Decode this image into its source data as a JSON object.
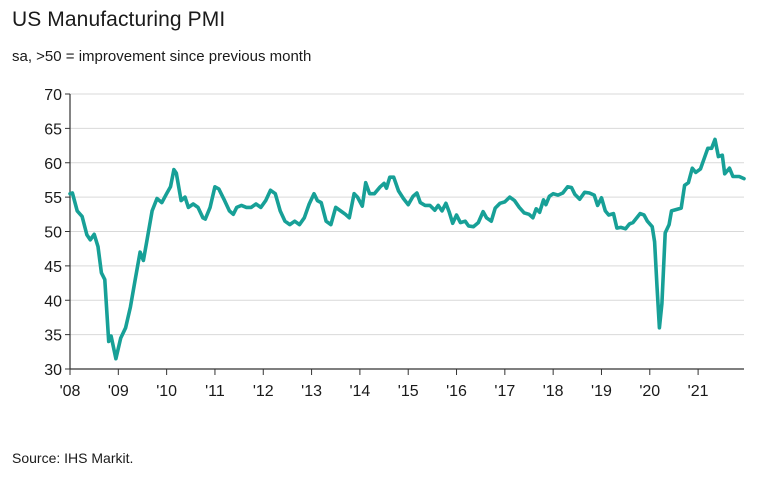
{
  "header": {
    "title": "US Manufacturing PMI",
    "subtitle": "sa, >50 = improvement since previous month"
  },
  "footer": {
    "source": "Source: IHS Markit."
  },
  "colors": {
    "line": "#17a097",
    "grid": "#d9d9d9",
    "axis": "#333333"
  },
  "chart_data": {
    "type": "line",
    "title": "US Manufacturing PMI",
    "subtitle": "sa, >50 = improvement since previous month",
    "xlabel": "",
    "ylabel": "",
    "ylim": [
      30,
      70
    ],
    "xlim": [
      2008.0,
      2021.95
    ],
    "grid": true,
    "yticks": [
      70,
      65,
      60,
      55,
      50,
      45,
      40,
      35,
      30
    ],
    "xtick_values": [
      2008,
      2009,
      2010,
      2011,
      2012,
      2013,
      2014,
      2015,
      2016,
      2017,
      2018,
      2019,
      2020,
      2021
    ],
    "xtick_labels": [
      "'08",
      "'09",
      "'10",
      "'11",
      "'12",
      "'13",
      "'14",
      "'15",
      "'16",
      "'17",
      "'18",
      "'19",
      "'20",
      "'21"
    ],
    "series": [
      {
        "name": "US Manufacturing PMI",
        "points": [
          [
            2008.0,
            55.5
          ],
          [
            2008.05,
            55.6
          ],
          [
            2008.15,
            53.0
          ],
          [
            2008.25,
            52.2
          ],
          [
            2008.35,
            49.5
          ],
          [
            2008.42,
            48.8
          ],
          [
            2008.5,
            49.6
          ],
          [
            2008.58,
            47.8
          ],
          [
            2008.65,
            44.0
          ],
          [
            2008.72,
            43.0
          ],
          [
            2008.8,
            34.0
          ],
          [
            2008.85,
            34.8
          ],
          [
            2008.95,
            31.5
          ],
          [
            2009.05,
            34.5
          ],
          [
            2009.15,
            36.0
          ],
          [
            2009.25,
            39.0
          ],
          [
            2009.35,
            43.0
          ],
          [
            2009.45,
            47.0
          ],
          [
            2009.52,
            45.8
          ],
          [
            2009.6,
            49.0
          ],
          [
            2009.7,
            53.0
          ],
          [
            2009.8,
            54.8
          ],
          [
            2009.9,
            54.2
          ],
          [
            2010.0,
            55.5
          ],
          [
            2010.08,
            56.5
          ],
          [
            2010.15,
            59.0
          ],
          [
            2010.2,
            58.5
          ],
          [
            2010.3,
            54.5
          ],
          [
            2010.38,
            55.0
          ],
          [
            2010.45,
            53.5
          ],
          [
            2010.55,
            54.0
          ],
          [
            2010.65,
            53.5
          ],
          [
            2010.75,
            52.0
          ],
          [
            2010.8,
            51.8
          ],
          [
            2010.9,
            53.5
          ],
          [
            2011.0,
            56.5
          ],
          [
            2011.08,
            56.2
          ],
          [
            2011.2,
            54.5
          ],
          [
            2011.3,
            53.0
          ],
          [
            2011.38,
            52.5
          ],
          [
            2011.45,
            53.5
          ],
          [
            2011.55,
            53.8
          ],
          [
            2011.65,
            53.5
          ],
          [
            2011.75,
            53.5
          ],
          [
            2011.85,
            54.0
          ],
          [
            2011.95,
            53.5
          ],
          [
            2012.05,
            54.5
          ],
          [
            2012.15,
            56.0
          ],
          [
            2012.25,
            55.5
          ],
          [
            2012.35,
            53.0
          ],
          [
            2012.45,
            51.5
          ],
          [
            2012.55,
            51.0
          ],
          [
            2012.65,
            51.5
          ],
          [
            2012.75,
            51.0
          ],
          [
            2012.85,
            52.0
          ],
          [
            2012.95,
            54.0
          ],
          [
            2013.05,
            55.5
          ],
          [
            2013.12,
            54.5
          ],
          [
            2013.2,
            54.2
          ],
          [
            2013.3,
            51.5
          ],
          [
            2013.4,
            51.0
          ],
          [
            2013.5,
            53.5
          ],
          [
            2013.6,
            53.0
          ],
          [
            2013.7,
            52.5
          ],
          [
            2013.78,
            52.0
          ],
          [
            2013.88,
            55.5
          ],
          [
            2013.95,
            55.0
          ],
          [
            2014.05,
            53.7
          ],
          [
            2014.12,
            57.1
          ],
          [
            2014.2,
            55.5
          ],
          [
            2014.3,
            55.5
          ],
          [
            2014.42,
            56.5
          ],
          [
            2014.5,
            57.0
          ],
          [
            2014.55,
            56.3
          ],
          [
            2014.62,
            57.9
          ],
          [
            2014.7,
            57.9
          ],
          [
            2014.8,
            55.9
          ],
          [
            2014.9,
            54.8
          ],
          [
            2015.0,
            53.9
          ],
          [
            2015.1,
            55.1
          ],
          [
            2015.18,
            55.6
          ],
          [
            2015.25,
            54.2
          ],
          [
            2015.35,
            53.8
          ],
          [
            2015.45,
            53.8
          ],
          [
            2015.55,
            53.1
          ],
          [
            2015.62,
            53.8
          ],
          [
            2015.7,
            53.0
          ],
          [
            2015.78,
            54.1
          ],
          [
            2015.85,
            52.8
          ],
          [
            2015.92,
            51.2
          ],
          [
            2016.0,
            52.4
          ],
          [
            2016.08,
            51.3
          ],
          [
            2016.18,
            51.5
          ],
          [
            2016.25,
            50.8
          ],
          [
            2016.35,
            50.7
          ],
          [
            2016.45,
            51.3
          ],
          [
            2016.55,
            52.9
          ],
          [
            2016.62,
            52.0
          ],
          [
            2016.72,
            51.5
          ],
          [
            2016.8,
            53.4
          ],
          [
            2016.9,
            54.1
          ],
          [
            2017.0,
            54.3
          ],
          [
            2017.1,
            55.0
          ],
          [
            2017.2,
            54.5
          ],
          [
            2017.3,
            53.5
          ],
          [
            2017.4,
            52.7
          ],
          [
            2017.5,
            52.5
          ],
          [
            2017.58,
            52.0
          ],
          [
            2017.65,
            53.3
          ],
          [
            2017.72,
            52.8
          ],
          [
            2017.8,
            54.6
          ],
          [
            2017.85,
            53.9
          ],
          [
            2017.92,
            55.1
          ],
          [
            2018.0,
            55.5
          ],
          [
            2018.1,
            55.3
          ],
          [
            2018.2,
            55.6
          ],
          [
            2018.3,
            56.5
          ],
          [
            2018.38,
            56.4
          ],
          [
            2018.45,
            55.4
          ],
          [
            2018.55,
            54.7
          ],
          [
            2018.65,
            55.7
          ],
          [
            2018.75,
            55.6
          ],
          [
            2018.85,
            55.3
          ],
          [
            2018.92,
            53.8
          ],
          [
            2019.0,
            54.9
          ],
          [
            2019.08,
            53.0
          ],
          [
            2019.15,
            52.4
          ],
          [
            2019.25,
            52.6
          ],
          [
            2019.32,
            50.5
          ],
          [
            2019.4,
            50.6
          ],
          [
            2019.5,
            50.4
          ],
          [
            2019.58,
            51.1
          ],
          [
            2019.65,
            51.3
          ],
          [
            2019.72,
            51.9
          ],
          [
            2019.8,
            52.6
          ],
          [
            2019.88,
            52.4
          ],
          [
            2019.95,
            51.5
          ],
          [
            2020.05,
            50.7
          ],
          [
            2020.1,
            48.5
          ],
          [
            2020.15,
            42.0
          ],
          [
            2020.2,
            36.0
          ],
          [
            2020.25,
            39.5
          ],
          [
            2020.32,
            49.8
          ],
          [
            2020.4,
            51.0
          ],
          [
            2020.45,
            53.0
          ],
          [
            2020.55,
            53.2
          ],
          [
            2020.65,
            53.4
          ],
          [
            2020.72,
            56.7
          ],
          [
            2020.8,
            57.1
          ],
          [
            2020.88,
            59.2
          ],
          [
            2020.95,
            58.6
          ],
          [
            2021.05,
            59.1
          ],
          [
            2021.12,
            60.5
          ],
          [
            2021.2,
            62.1
          ],
          [
            2021.28,
            62.1
          ],
          [
            2021.35,
            63.4
          ],
          [
            2021.42,
            60.9
          ],
          [
            2021.5,
            61.1
          ],
          [
            2021.55,
            58.4
          ],
          [
            2021.65,
            59.2
          ],
          [
            2021.72,
            58.0
          ],
          [
            2021.85,
            58.0
          ],
          [
            2021.95,
            57.7
          ]
        ]
      }
    ]
  }
}
